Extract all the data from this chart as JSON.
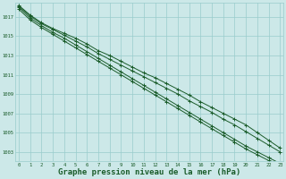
{
  "background_color": "#cce8e8",
  "grid_color": "#99cccc",
  "line_color": "#1a5c2a",
  "marker_color": "#1a5c2a",
  "xlabel": "Graphe pression niveau de la mer (hPa)",
  "xlabel_fontsize": 6.5,
  "ylim": [
    1002.0,
    1018.5
  ],
  "xlim": [
    -0.3,
    23.3
  ],
  "yticks": [
    1003,
    1005,
    1007,
    1009,
    1011,
    1013,
    1015,
    1017
  ],
  "xticks": [
    0,
    1,
    2,
    3,
    4,
    5,
    6,
    7,
    8,
    9,
    10,
    11,
    12,
    13,
    14,
    15,
    16,
    17,
    18,
    19,
    20,
    21,
    22,
    23
  ],
  "lines": [
    [
      1018.2,
      1017.2,
      1016.4,
      1015.8,
      1015.3,
      1014.8,
      1014.2,
      1013.5,
      1013.0,
      1012.4,
      1011.8,
      1011.2,
      1010.7,
      1010.1,
      1009.5,
      1008.9,
      1008.2,
      1007.6,
      1007.0,
      1006.4,
      1005.8,
      1005.0,
      1004.2,
      1003.4
    ],
    [
      1018.1,
      1017.1,
      1016.3,
      1015.7,
      1015.1,
      1014.5,
      1013.9,
      1013.2,
      1012.6,
      1012.0,
      1011.4,
      1010.8,
      1010.2,
      1009.6,
      1009.0,
      1008.3,
      1007.7,
      1007.1,
      1006.4,
      1005.8,
      1005.1,
      1004.4,
      1003.7,
      1003.0
    ],
    [
      1018.0,
      1016.9,
      1016.1,
      1015.4,
      1014.8,
      1014.1,
      1013.4,
      1012.7,
      1012.0,
      1011.3,
      1010.6,
      1009.9,
      1009.2,
      1008.5,
      1007.8,
      1007.1,
      1006.4,
      1005.7,
      1005.0,
      1004.3,
      1003.6,
      1003.0,
      1002.4,
      1001.8
    ],
    [
      1017.8,
      1016.7,
      1015.9,
      1015.2,
      1014.5,
      1013.8,
      1013.1,
      1012.4,
      1011.7,
      1011.0,
      1010.3,
      1009.6,
      1008.9,
      1008.2,
      1007.5,
      1006.8,
      1006.1,
      1005.4,
      1004.7,
      1004.0,
      1003.3,
      1002.7,
      1002.1,
      1001.5
    ]
  ]
}
